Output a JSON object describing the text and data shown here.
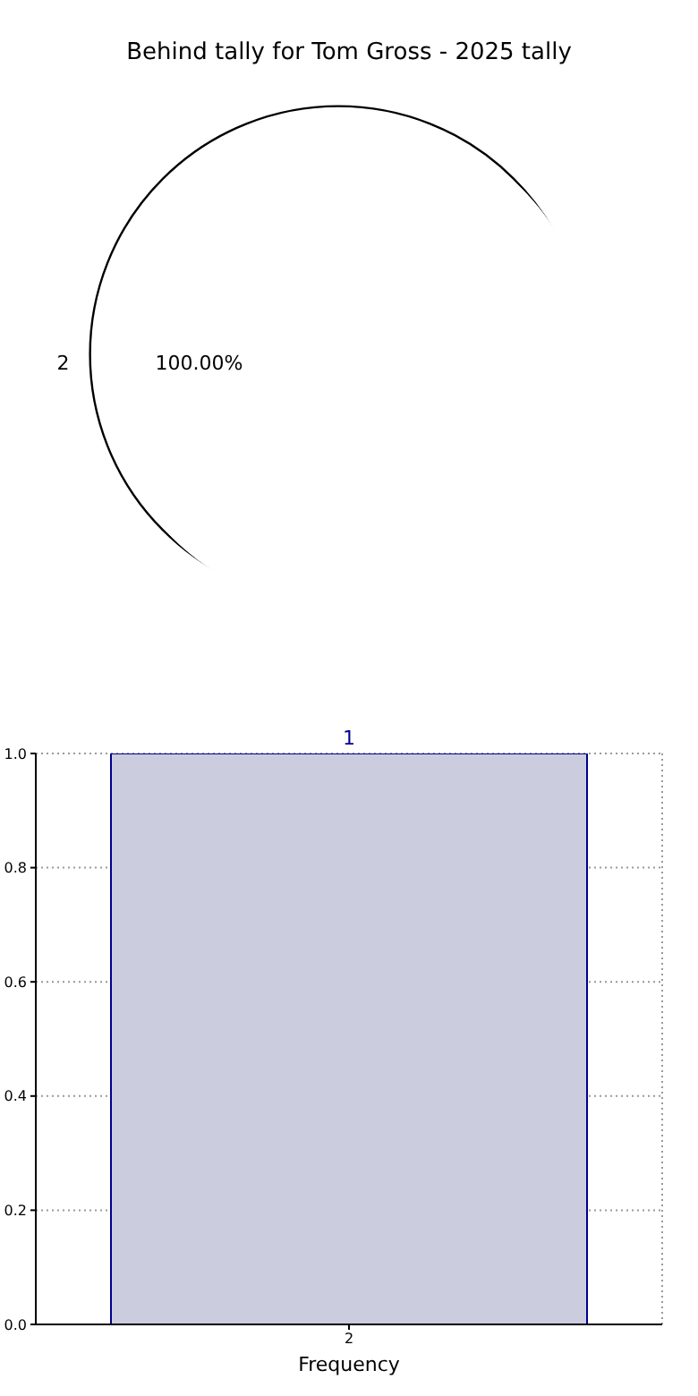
{
  "chart_data": [
    {
      "type": "pie",
      "title": "Behind tally for Tom Gross - 2025 tally",
      "categories": [
        "2"
      ],
      "values": [
        100
      ],
      "colors": [
        "#ffffff"
      ],
      "value_labels": [
        "100.00%"
      ]
    },
    {
      "type": "bar",
      "categories": [
        "2"
      ],
      "values": [
        1
      ],
      "color": "#ccccdf",
      "xlabel": "Frequency",
      "ylim": [
        0,
        1
      ],
      "yticks": [
        {
          "value": 0,
          "label": "0.0"
        },
        {
          "value": 0.2,
          "label": "0.2"
        },
        {
          "value": 0.4,
          "label": "0.4"
        },
        {
          "value": 0.6,
          "label": "0.6"
        },
        {
          "value": 0.8,
          "label": "0.8"
        },
        {
          "value": 1,
          "label": "1.0"
        }
      ],
      "grid": true,
      "data_labels": true
    }
  ]
}
